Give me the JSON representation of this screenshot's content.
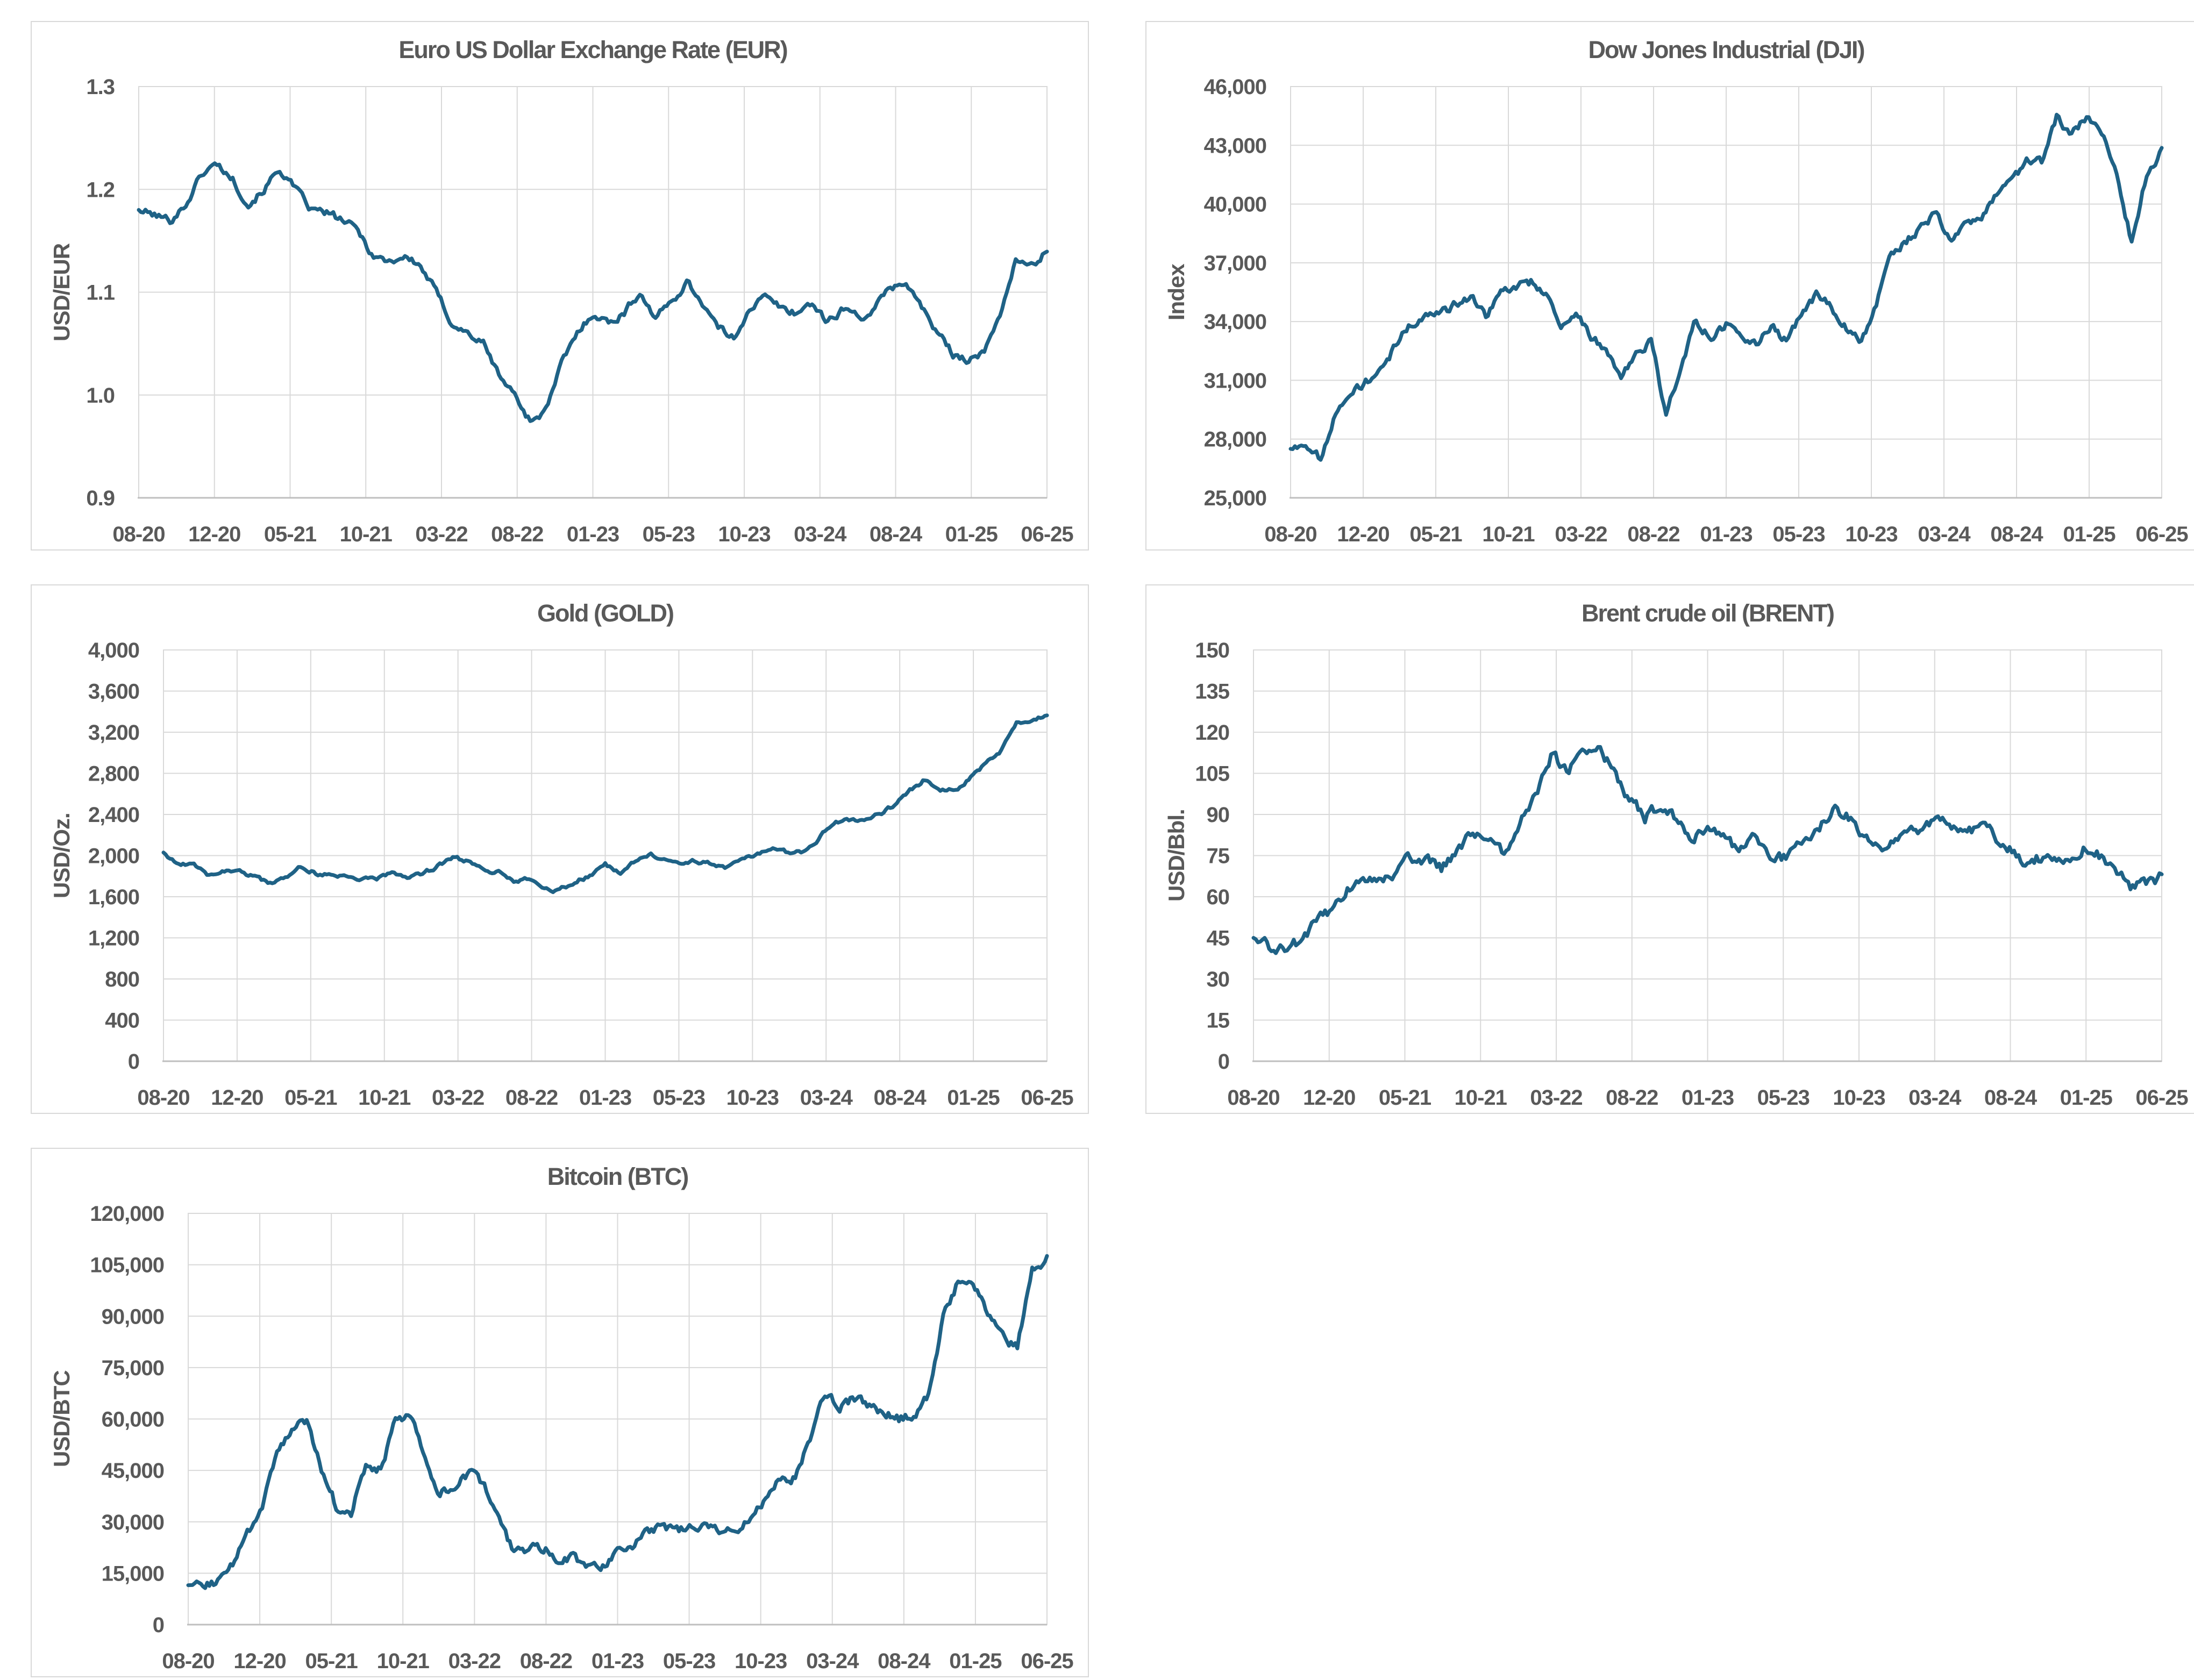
{
  "colors": {
    "line": "#1f6286",
    "grid": "#d9d9d9",
    "axis": "#bfbfbf",
    "text": "#595959",
    "panel_border": "#d9d9d9",
    "background": "#ffffff"
  },
  "x_tick_labels": [
    "08-20",
    "12-20",
    "05-21",
    "10-21",
    "03-22",
    "08-22",
    "01-23",
    "05-23",
    "10-23",
    "03-24",
    "08-24",
    "01-25",
    "06-25"
  ],
  "months": [
    "2020-08",
    "2020-09",
    "2020-10",
    "2020-11",
    "2020-12",
    "2021-01",
    "2021-02",
    "2021-03",
    "2021-04",
    "2021-05",
    "2021-06",
    "2021-07",
    "2021-08",
    "2021-09",
    "2021-10",
    "2021-11",
    "2021-12",
    "2022-01",
    "2022-02",
    "2022-03",
    "2022-04",
    "2022-05",
    "2022-06",
    "2022-07",
    "2022-08",
    "2022-09",
    "2022-10",
    "2022-11",
    "2022-12",
    "2023-01",
    "2023-02",
    "2023-03",
    "2023-04",
    "2023-05",
    "2023-06",
    "2023-07",
    "2023-08",
    "2023-09",
    "2023-10",
    "2023-11",
    "2023-12",
    "2024-01",
    "2024-02",
    "2024-03",
    "2024-04",
    "2024-05",
    "2024-06",
    "2024-07",
    "2024-08",
    "2024-09",
    "2024-10",
    "2024-11",
    "2024-12",
    "2025-01",
    "2025-02",
    "2025-03",
    "2025-04",
    "2025-05",
    "2025-06"
  ],
  "chart_data": [
    {
      "id": "eur",
      "type": "line",
      "title": "Euro US Dollar Exchange Rate (EUR)",
      "y_axis_label": "USD/EUR",
      "y_min": 0.9,
      "y_max": 1.3,
      "y_tick_labels": [
        "0.9",
        "1.0",
        "1.1",
        "1.2",
        "1.3"
      ],
      "grid": true,
      "legend": "none",
      "values": [
        1.18,
        1.175,
        1.17,
        1.185,
        1.215,
        1.225,
        1.21,
        1.185,
        1.2,
        1.22,
        1.2,
        1.18,
        1.177,
        1.17,
        1.16,
        1.135,
        1.13,
        1.135,
        1.125,
        1.1,
        1.07,
        1.06,
        1.05,
        1.02,
        1.0,
        0.975,
        0.985,
        1.03,
        1.06,
        1.08,
        1.07,
        1.08,
        1.1,
        1.075,
        1.09,
        1.11,
        1.09,
        1.065,
        1.055,
        1.085,
        1.095,
        1.085,
        1.08,
        1.09,
        1.07,
        1.085,
        1.075,
        1.083,
        1.105,
        1.11,
        1.085,
        1.06,
        1.04,
        1.035,
        1.04,
        1.08,
        1.13,
        1.125,
        1.14
      ]
    },
    {
      "id": "dji",
      "type": "line",
      "title": "Dow Jones Industrial (DJI)",
      "y_axis_label": "Index",
      "y_min": 25000,
      "y_max": 46000,
      "y_tick_labels": [
        "25,000",
        "28,000",
        "31,000",
        "34,000",
        "37,000",
        "40,000",
        "43,000",
        "46,000"
      ],
      "grid": true,
      "legend": "none",
      "values": [
        27500,
        27800,
        27000,
        29500,
        30200,
        30900,
        31400,
        32800,
        33900,
        34400,
        34300,
        34900,
        35300,
        34300,
        35500,
        35800,
        36000,
        35500,
        33900,
        34300,
        33300,
        32500,
        31100,
        32300,
        33000,
        29200,
        31800,
        34100,
        33200,
        33800,
        33000,
        32800,
        33800,
        33000,
        34300,
        35300,
        34800,
        33700,
        32900,
        35000,
        37500,
        38100,
        38900,
        39500,
        38200,
        39000,
        39100,
        40600,
        41000,
        42300,
        42100,
        44500,
        43500,
        44500,
        43800,
        41500,
        38000,
        41500,
        42700
      ]
    },
    {
      "id": "gold",
      "type": "line",
      "title": "Gold (GOLD)",
      "y_axis_label": "USD/Oz.",
      "y_min": 0,
      "y_max": 4000,
      "y_tick_labels": [
        "0",
        "400",
        "800",
        "1,200",
        "1,600",
        "2,000",
        "2,400",
        "2,800",
        "3,200",
        "3,600",
        "4,000"
      ],
      "grid": true,
      "legend": "none",
      "values": [
        2030,
        1920,
        1900,
        1810,
        1860,
        1850,
        1790,
        1720,
        1770,
        1890,
        1830,
        1810,
        1800,
        1760,
        1780,
        1820,
        1790,
        1820,
        1900,
        1980,
        1940,
        1850,
        1840,
        1740,
        1770,
        1670,
        1660,
        1750,
        1800,
        1910,
        1840,
        1950,
        2000,
        1970,
        1930,
        1950,
        1920,
        1880,
        1970,
        2010,
        2050,
        2030,
        2030,
        2160,
        2330,
        2350,
        2330,
        2400,
        2490,
        2630,
        2740,
        2650,
        2630,
        2770,
        2900,
        3020,
        3280,
        3300,
        3380
      ]
    },
    {
      "id": "brent",
      "type": "line",
      "title": "Brent crude oil (BRENT)",
      "y_axis_label": "USD/Bbl.",
      "y_min": 0,
      "y_max": 150,
      "y_tick_labels": [
        "0",
        "15",
        "30",
        "45",
        "60",
        "75",
        "90",
        "105",
        "120",
        "135",
        "150"
      ],
      "grid": true,
      "legend": "none",
      "values": [
        45,
        42,
        40,
        44,
        50,
        55,
        63,
        65,
        66,
        68,
        74,
        74,
        70,
        77,
        84,
        80,
        76,
        88,
        96,
        112,
        106,
        112,
        117,
        105,
        96,
        89,
        93,
        88,
        81,
        84,
        83,
        76,
        83,
        76,
        74,
        80,
        85,
        92,
        89,
        81,
        77,
        79,
        83,
        86,
        89,
        83,
        85,
        84,
        79,
        73,
        74,
        73,
        73,
        78,
        75,
        71,
        64,
        64,
        67
      ]
    },
    {
      "id": "btc",
      "type": "line",
      "title": "Bitcoin (BTC)",
      "y_axis_label": "USD/BTC",
      "y_min": 0,
      "y_max": 120000,
      "y_tick_labels": [
        "0",
        "15,000",
        "30,000",
        "45,000",
        "60,000",
        "75,000",
        "90,000",
        "105,000",
        "120,000"
      ],
      "grid": true,
      "legend": "none",
      "values": [
        11500,
        10800,
        13000,
        17500,
        26000,
        34000,
        49000,
        57000,
        60000,
        45000,
        34500,
        33000,
        46000,
        45000,
        59000,
        60500,
        48000,
        39000,
        40000,
        44000,
        40000,
        30500,
        21000,
        22000,
        22500,
        19500,
        19800,
        17000,
        16800,
        21000,
        23500,
        27000,
        29000,
        27200,
        29000,
        29800,
        27500,
        26500,
        31000,
        36500,
        42500,
        43000,
        55000,
        68000,
        64000,
        66000,
        63500,
        62000,
        60000,
        61500,
        66500,
        90000,
        100000,
        101000,
        90000,
        84000,
        81000,
        104000,
        107000
      ]
    }
  ]
}
